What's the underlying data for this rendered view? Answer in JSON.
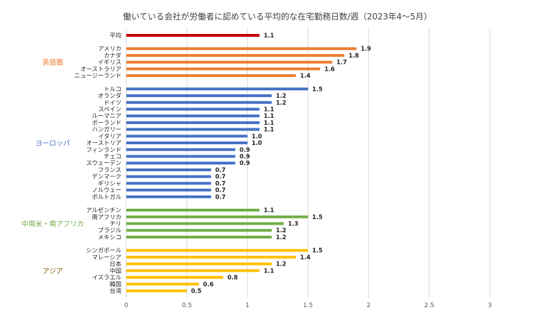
{
  "chart_data": {
    "type": "bar",
    "orientation": "horizontal",
    "title": "働いている会社が労働者に認めている平均的な在宅勤務日数/週（2023年4〜5月）",
    "xlim": [
      0,
      3
    ],
    "xticks": [
      "0",
      "0.5",
      "1",
      "1.5",
      "2",
      "2.5",
      "3"
    ],
    "grid": true,
    "groups": [
      {
        "name": "",
        "color": "#c00000",
        "items": [
          {
            "label": "平均",
            "value": 1.1,
            "value_label": "1.1"
          }
        ]
      },
      {
        "name": "英語圏",
        "color": "#ed7d31",
        "items": [
          {
            "label": "アメリカ",
            "value": 1.9,
            "value_label": "1.9"
          },
          {
            "label": "カナダ",
            "value": 1.8,
            "value_label": "1.8"
          },
          {
            "label": "イギリス",
            "value": 1.7,
            "value_label": "1.7"
          },
          {
            "label": "オーストラリア",
            "value": 1.6,
            "value_label": "1.6"
          },
          {
            "label": "ニュージーランド",
            "value": 1.4,
            "value_label": "1.4"
          }
        ]
      },
      {
        "name": "ヨーロッパ",
        "color": "#4472c4",
        "items": [
          {
            "label": "トルコ",
            "value": 1.5,
            "value_label": "1.5"
          },
          {
            "label": "オランダ",
            "value": 1.2,
            "value_label": "1.2"
          },
          {
            "label": "ドイツ",
            "value": 1.2,
            "value_label": "1.2"
          },
          {
            "label": "スペイン",
            "value": 1.1,
            "value_label": "1.1"
          },
          {
            "label": "ルーマニア",
            "value": 1.1,
            "value_label": "1.1"
          },
          {
            "label": "ポーランド",
            "value": 1.1,
            "value_label": "1.1"
          },
          {
            "label": "ハンガリー",
            "value": 1.1,
            "value_label": "1.1"
          },
          {
            "label": "イタリア",
            "value": 1.0,
            "value_label": "1.0"
          },
          {
            "label": "オーストリア",
            "value": 1.0,
            "value_label": "1.0"
          },
          {
            "label": "フィンランド",
            "value": 0.9,
            "value_label": "0.9"
          },
          {
            "label": "チェコ",
            "value": 0.9,
            "value_label": "0.9"
          },
          {
            "label": "スウェーデン",
            "value": 0.9,
            "value_label": "0.9"
          },
          {
            "label": "フランス",
            "value": 0.7,
            "value_label": "0.7"
          },
          {
            "label": "デンマーク",
            "value": 0.7,
            "value_label": "0.7"
          },
          {
            "label": "ギリシャ",
            "value": 0.7,
            "value_label": "0.7"
          },
          {
            "label": "ノルウェー",
            "value": 0.7,
            "value_label": "0.7"
          },
          {
            "label": "ポルトガル",
            "value": 0.7,
            "value_label": "0.7"
          }
        ]
      },
      {
        "name": "中南米・南アフリカ",
        "color": "#70ad47",
        "items": [
          {
            "label": "アルゼンチン",
            "value": 1.1,
            "value_label": "1.1"
          },
          {
            "label": "南アフリカ",
            "value": 1.5,
            "value_label": "1.5"
          },
          {
            "label": "チリ",
            "value": 1.3,
            "value_label": "1.3"
          },
          {
            "label": "ブラジル",
            "value": 1.2,
            "value_label": "1.2"
          },
          {
            "label": "メキシコ",
            "value": 1.2,
            "value_label": "1.2"
          }
        ]
      },
      {
        "name": "アジア",
        "color": "#ffc000",
        "label_color": "#7f6000",
        "items": [
          {
            "label": "シンガポール",
            "value": 1.5,
            "value_label": "1.5"
          },
          {
            "label": "マレーシア",
            "value": 1.4,
            "value_label": "1.4"
          },
          {
            "label": "日本",
            "value": 1.2,
            "value_label": "1.2"
          },
          {
            "label": "中国",
            "value": 1.1,
            "value_label": "1.1"
          },
          {
            "label": "イスラエル",
            "value": 0.8,
            "value_label": "0.8"
          },
          {
            "label": "韓国",
            "value": 0.6,
            "value_label": "0.6"
          },
          {
            "label": "台湾",
            "value": 0.5,
            "value_label": "0.5"
          }
        ]
      }
    ]
  }
}
